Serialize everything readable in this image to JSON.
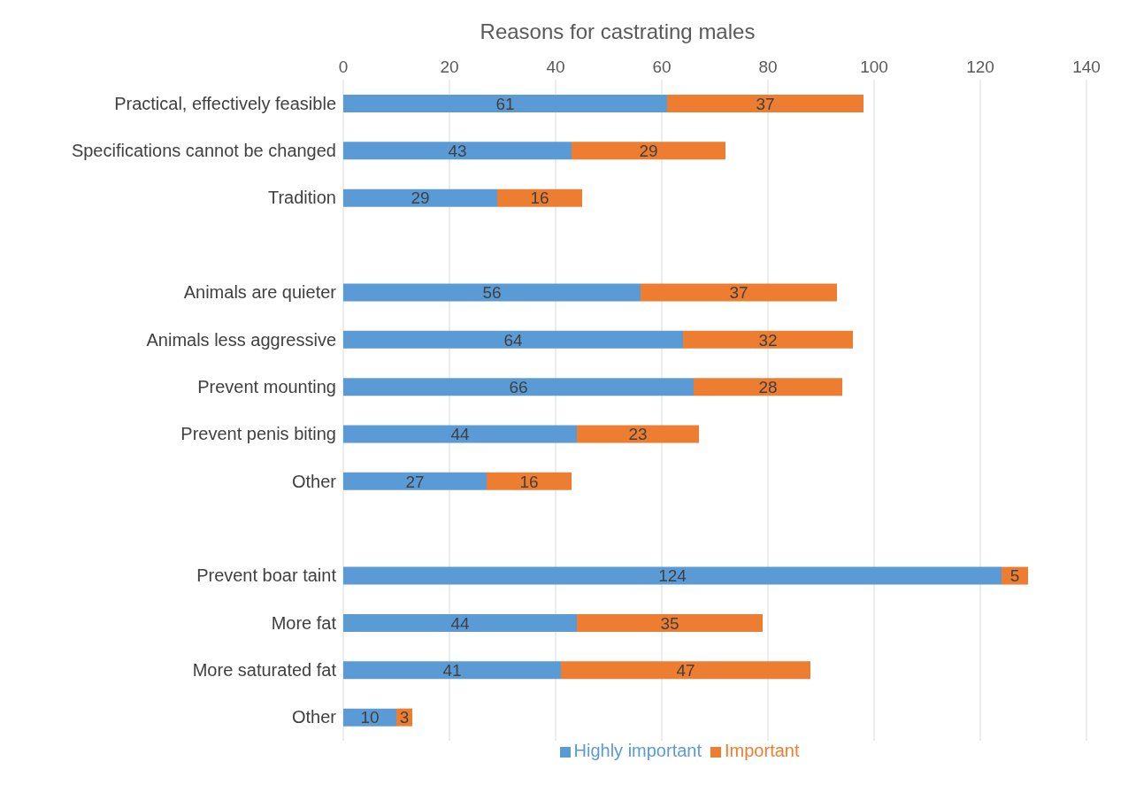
{
  "chart_data": {
    "type": "bar",
    "title": "Reasons for castrating males",
    "orientation": "horizontal",
    "stacked": true,
    "categories": [
      "Practical, effectively feasible",
      "Specifications cannot be changed",
      "Tradition",
      null,
      "Animals are quieter",
      "Animals less aggressive",
      "Prevent mounting",
      "Prevent penis biting",
      "Other",
      null,
      "Prevent boar taint",
      "More fat",
      "More saturated fat",
      "Other"
    ],
    "series": [
      {
        "name": "Highly important",
        "color": "#5b9bd5",
        "values": [
          61,
          43,
          29,
          null,
          56,
          64,
          66,
          44,
          27,
          null,
          124,
          44,
          41,
          10
        ]
      },
      {
        "name": "Important",
        "color": "#ed7d31",
        "values": [
          37,
          29,
          16,
          null,
          37,
          32,
          28,
          23,
          16,
          null,
          5,
          35,
          47,
          3
        ]
      }
    ],
    "xlim": [
      0,
      140
    ],
    "xticks": [
      0,
      20,
      40,
      60,
      80,
      100,
      120,
      140
    ],
    "grid": "x",
    "legend": "bottom",
    "data_labels": true
  }
}
